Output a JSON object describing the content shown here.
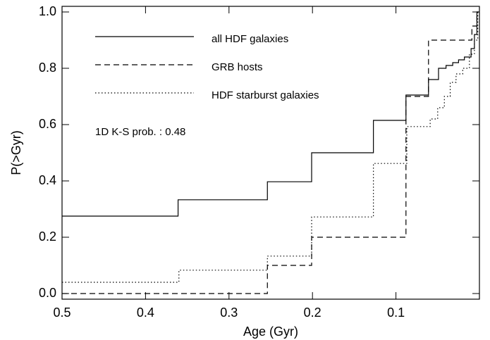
{
  "chart_data": {
    "type": "line",
    "x_label": "Age (Gyr)",
    "y_label": "P(>Gyr)",
    "xlim": [
      0.5,
      0.0
    ],
    "ylim": [
      -0.02,
      1.02
    ],
    "xticks": [
      0.5,
      0.4,
      0.3,
      0.2,
      0.1
    ],
    "yticks": [
      {
        "value": 0,
        "label": "0.0"
      },
      0.2,
      0.4,
      0.6,
      0.8,
      {
        "value": 1,
        "label": "1.0"
      }
    ],
    "annotation": "1D K-S prob. : 0.48",
    "legend": "upper left",
    "series": [
      {
        "name": "all HDF galaxies",
        "color": "#000000",
        "dash": "solid",
        "x": [
          0.5,
          0.361,
          0.361,
          0.254,
          0.254,
          0.201,
          0.201,
          0.127,
          0.127,
          0.088,
          0.088,
          0.061,
          0.061,
          0.049,
          0.049,
          0.04,
          0.04,
          0.032,
          0.032,
          0.025,
          0.025,
          0.018,
          0.018,
          0.01,
          0.01,
          0.006,
          0.006,
          0.003,
          0.003,
          0.001
        ],
        "values": [
          0.275,
          0.275,
          0.333,
          0.333,
          0.397,
          0.397,
          0.5,
          0.5,
          0.615,
          0.615,
          0.705,
          0.705,
          0.76,
          0.76,
          0.8,
          0.8,
          0.81,
          0.81,
          0.82,
          0.82,
          0.83,
          0.83,
          0.84,
          0.84,
          0.87,
          0.87,
          0.92,
          0.92,
          1.0,
          1.0
        ]
      },
      {
        "name": "GRB hosts",
        "color": "#000000",
        "dash": "dashed",
        "x": [
          0.5,
          0.254,
          0.254,
          0.201,
          0.201,
          0.088,
          0.088,
          0.061,
          0.061,
          0.009,
          0.009,
          0.003,
          0.003,
          0.001
        ],
        "values": [
          0,
          0,
          0.1,
          0.1,
          0.2,
          0.2,
          0.7,
          0.7,
          0.9,
          0.9,
          0.95,
          0.95,
          1.0,
          1.0
        ]
      },
      {
        "name": "HDF starburst galaxies",
        "color": "#000000",
        "dash": "dotted",
        "x": [
          0.5,
          0.36,
          0.36,
          0.254,
          0.254,
          0.201,
          0.201,
          0.127,
          0.127,
          0.087,
          0.087,
          0.059,
          0.059,
          0.05,
          0.05,
          0.042,
          0.042,
          0.035,
          0.035,
          0.028,
          0.028,
          0.02,
          0.02,
          0.012,
          0.012,
          0.006,
          0.006,
          0.002,
          0.002,
          0.0
        ],
        "values": [
          0.04,
          0.04,
          0.083,
          0.083,
          0.133,
          0.133,
          0.272,
          0.272,
          0.462,
          0.462,
          0.593,
          0.593,
          0.62,
          0.62,
          0.66,
          0.66,
          0.7,
          0.7,
          0.75,
          0.75,
          0.78,
          0.78,
          0.8,
          0.8,
          0.85,
          0.85,
          0.9,
          0.9,
          1.0,
          1.0
        ]
      }
    ]
  }
}
